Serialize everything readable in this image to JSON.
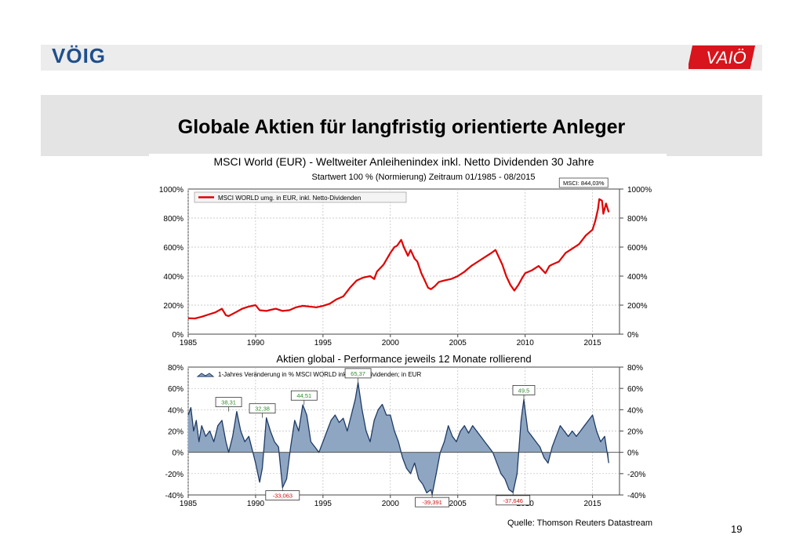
{
  "header": {
    "logo_left": "VÖIG",
    "logo_right": "VAIÖ",
    "title": "Globale Aktien für langfristig orientierte Anleger",
    "page_number": "19"
  },
  "source": "Quelle: Thomson Reuters Datastream",
  "colors": {
    "line": "#e00000",
    "area_fill": "#8fa6c2",
    "area_stroke": "#1f3b66",
    "label_green": "#2e8b2e",
    "label_red": "#d01010",
    "logo_blue": "#1f4e8c",
    "logo_red": "#d8141c"
  },
  "chart_data": [
    {
      "type": "line",
      "title": "MSCI World (EUR) - Weltweiter Anleihenindex inkl. Netto Dividenden 30 Jahre",
      "subtitle": "Startwert 100 % (Normierung) Zeitraum 01/1985 - 08/2015",
      "legend": "MSCI WORLD umg. in EUR, inkl. Netto-Dividenden",
      "legend_position": "top-left",
      "xlim": [
        1985,
        2017
      ],
      "ylim": [
        0,
        1000
      ],
      "x_ticks": [
        "1985",
        "1990",
        "1995",
        "2000",
        "2005",
        "2010",
        "2015"
      ],
      "y_ticks_left": [
        "1000%",
        "800%",
        "600%",
        "400%",
        "200%",
        "0%"
      ],
      "y_ticks_right": [
        "1000%",
        "800%",
        "600%",
        "400%",
        "200%",
        "0%"
      ],
      "grid": true,
      "annotation": "MSCI: 844,03%",
      "series": [
        {
          "name": "MSCI WORLD umg. in EUR, inkl. Netto-Dividenden",
          "x": [
            1985.0,
            1985.5,
            1986.0,
            1986.5,
            1987.0,
            1987.5,
            1987.8,
            1988.0,
            1988.5,
            1989.0,
            1989.5,
            1990.0,
            1990.3,
            1990.8,
            1991.0,
            1991.5,
            1992.0,
            1992.5,
            1993.0,
            1993.5,
            1994.0,
            1994.5,
            1995.0,
            1995.5,
            1996.0,
            1996.5,
            1997.0,
            1997.5,
            1998.0,
            1998.5,
            1998.8,
            1999.0,
            1999.5,
            2000.0,
            2000.3,
            2000.5,
            2000.8,
            2001.0,
            2001.3,
            2001.5,
            2001.8,
            2002.0,
            2002.3,
            2002.5,
            2002.8,
            2003.0,
            2003.3,
            2003.6,
            2004.0,
            2004.5,
            2005.0,
            2005.5,
            2006.0,
            2006.5,
            2007.0,
            2007.5,
            2007.8,
            2008.0,
            2008.3,
            2008.6,
            2008.9,
            2009.2,
            2009.5,
            2009.8,
            2010.0,
            2010.5,
            2011.0,
            2011.5,
            2011.8,
            2012.0,
            2012.5,
            2013.0,
            2013.5,
            2014.0,
            2014.5,
            2015.0,
            2015.2,
            2015.4,
            2015.5,
            2015.7,
            2015.8,
            2016.0,
            2016.2
          ],
          "y": [
            110,
            108,
            120,
            135,
            150,
            175,
            130,
            125,
            150,
            175,
            190,
            200,
            165,
            160,
            165,
            175,
            160,
            165,
            185,
            195,
            190,
            185,
            195,
            210,
            240,
            260,
            320,
            370,
            390,
            400,
            380,
            430,
            480,
            560,
            600,
            610,
            650,
            600,
            540,
            580,
            520,
            500,
            420,
            380,
            320,
            310,
            330,
            360,
            370,
            380,
            400,
            430,
            470,
            500,
            530,
            560,
            580,
            540,
            480,
            400,
            340,
            300,
            340,
            390,
            420,
            440,
            470,
            420,
            470,
            480,
            500,
            560,
            590,
            620,
            680,
            720,
            780,
            860,
            930,
            920,
            830,
            900,
            840
          ]
        }
      ]
    },
    {
      "type": "area",
      "title": "Aktien global - Performance jeweils 12 Monate rollierend",
      "legend": "1-Jahres Veränderung in % MSCI WORLD inkl Netto-Dividenden; in EUR",
      "legend_position": "top-left",
      "xlim": [
        1985,
        2017
      ],
      "ylim": [
        -40,
        80
      ],
      "x_ticks": [
        "1985",
        "1990",
        "1995",
        "2000",
        "2005",
        "2010",
        "2015"
      ],
      "y_ticks_left": [
        "80%",
        "60%",
        "40%",
        "20%",
        "0%",
        "-20%",
        "-40%"
      ],
      "y_ticks_right": [
        "80%",
        "60%",
        "40%",
        "20%",
        "0%",
        "-20%",
        "-40%"
      ],
      "grid": true,
      "annotations": [
        {
          "text": "38,31",
          "x": 1988.0,
          "y": 38.31,
          "color": "green"
        },
        {
          "text": "32,38",
          "x": 1990.5,
          "y": 32.38,
          "color": "green"
        },
        {
          "text": "44,51",
          "x": 1993.6,
          "y": 44.51,
          "color": "green"
        },
        {
          "text": "65,37",
          "x": 1997.6,
          "y": 65.37,
          "color": "green"
        },
        {
          "text": "49,5",
          "x": 2009.9,
          "y": 49.5,
          "color": "green"
        },
        {
          "text": "-33,063",
          "x": 1992.0,
          "y": -33.063,
          "color": "red"
        },
        {
          "text": "-39,391",
          "x": 2003.1,
          "y": -39.391,
          "color": "red"
        },
        {
          "text": "-37,646",
          "x": 2009.1,
          "y": -37.646,
          "color": "red"
        }
      ],
      "series": [
        {
          "name": "1-Jahres Veränderung in % MSCI WORLD inkl Netto-Dividenden; in EUR",
          "x": [
            1985.0,
            1985.2,
            1985.4,
            1985.6,
            1985.8,
            1986.0,
            1986.3,
            1986.6,
            1986.9,
            1987.2,
            1987.5,
            1987.8,
            1988.0,
            1988.3,
            1988.6,
            1988.9,
            1989.2,
            1989.5,
            1989.8,
            1990.0,
            1990.3,
            1990.5,
            1990.8,
            1991.1,
            1991.4,
            1991.7,
            1992.0,
            1992.3,
            1992.6,
            1992.9,
            1993.2,
            1993.5,
            1993.8,
            1994.1,
            1994.4,
            1994.7,
            1995.0,
            1995.3,
            1995.6,
            1995.9,
            1996.2,
            1996.5,
            1996.8,
            1997.1,
            1997.4,
            1997.6,
            1997.9,
            1998.2,
            1998.5,
            1998.8,
            1999.1,
            1999.4,
            1999.7,
            2000.0,
            2000.3,
            2000.6,
            2000.9,
            2001.2,
            2001.5,
            2001.8,
            2002.1,
            2002.4,
            2002.7,
            2003.0,
            2003.1,
            2003.4,
            2003.7,
            2004.0,
            2004.3,
            2004.6,
            2004.9,
            2005.2,
            2005.5,
            2005.8,
            2006.1,
            2006.4,
            2006.7,
            2007.0,
            2007.3,
            2007.6,
            2007.9,
            2008.2,
            2008.5,
            2008.8,
            2009.1,
            2009.4,
            2009.7,
            2009.9,
            2010.2,
            2010.5,
            2010.8,
            2011.1,
            2011.4,
            2011.7,
            2012.0,
            2012.3,
            2012.6,
            2012.9,
            2013.2,
            2013.5,
            2013.8,
            2014.1,
            2014.4,
            2014.7,
            2015.0,
            2015.3,
            2015.6,
            2015.9,
            2016.2
          ],
          "y": [
            35,
            42,
            20,
            30,
            10,
            25,
            15,
            20,
            10,
            25,
            30,
            10,
            0,
            15,
            38.31,
            20,
            10,
            15,
            0,
            -10,
            -28,
            -15,
            32.38,
            20,
            10,
            5,
            -33.063,
            -25,
            5,
            30,
            20,
            44.51,
            35,
            10,
            5,
            0,
            10,
            20,
            30,
            35,
            28,
            32,
            20,
            35,
            50,
            65.37,
            40,
            20,
            10,
            30,
            40,
            45,
            35,
            35,
            20,
            10,
            -5,
            -15,
            -20,
            -10,
            -25,
            -30,
            -38,
            -35,
            -39.391,
            -20,
            0,
            10,
            25,
            15,
            10,
            20,
            25,
            18,
            25,
            20,
            15,
            10,
            5,
            0,
            -10,
            -20,
            -25,
            -35,
            -37.646,
            -20,
            30,
            49.5,
            20,
            15,
            10,
            5,
            -5,
            -10,
            5,
            15,
            25,
            20,
            15,
            20,
            15,
            20,
            25,
            30,
            35,
            20,
            10,
            15,
            -10
          ]
        }
      ]
    }
  ]
}
